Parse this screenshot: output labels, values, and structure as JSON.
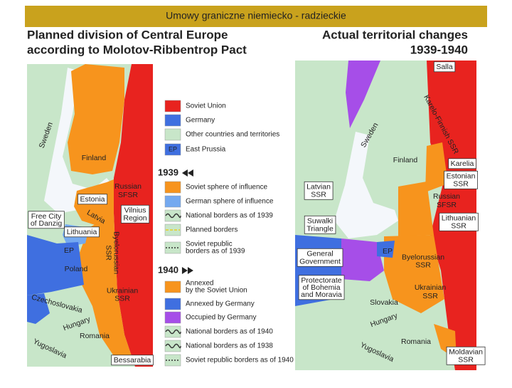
{
  "header": {
    "title": "Umowy graniczne niemiecko - radzieckie"
  },
  "left": {
    "title": [
      "Planned division of Central Europe",
      "according to Molotov-Ribbentrop Pact"
    ],
    "labels": [
      [
        "Sweden"
      ],
      [
        "Finland"
      ],
      [
        "Estonia"
      ],
      [
        "Latvia"
      ],
      [
        "Lithuania"
      ],
      [
        "Russian",
        "SFSR"
      ],
      [
        "Vilnius",
        "Region"
      ],
      [
        "Free City",
        "of Danzig"
      ],
      [
        "EP"
      ],
      [
        "Poland"
      ],
      [
        "Byelorussian",
        "SSR"
      ],
      [
        "Ukrainian",
        "SSR"
      ],
      [
        "Czechoslovakia"
      ],
      [
        "Hungary"
      ],
      [
        "Romania"
      ],
      [
        "Yugoslavia"
      ],
      [
        "Bessarabia"
      ]
    ]
  },
  "right": {
    "title": [
      "Actual territorial changes",
      "1939-1940"
    ],
    "labels": [
      [
        "Salla"
      ],
      [
        "Karelo-Finnish SSR"
      ],
      [
        "Sweden"
      ],
      [
        "Finland"
      ],
      [
        "Karelia"
      ],
      [
        "Estonian",
        "SSR"
      ],
      [
        "Latvian",
        "SSR"
      ],
      [
        "Russian",
        "SFSR"
      ],
      [
        "Lithuanian",
        "SSR"
      ],
      [
        "Suwalki",
        "Triangle"
      ],
      [
        "General",
        "Government"
      ],
      [
        "EP"
      ],
      [
        "Byelorussian",
        "SSR"
      ],
      [
        "Protectorate",
        "of Bohemia",
        "and Moravia"
      ],
      [
        "Slovakia"
      ],
      [
        "Hungary"
      ],
      [
        "Ukrainian",
        "SSR"
      ],
      [
        "Romania"
      ],
      [
        "Yugoslavia"
      ],
      [
        "Moldavian",
        "SSR"
      ]
    ]
  },
  "legend": {
    "items": [
      {
        "label": [
          "Soviet Union"
        ],
        "color": "#e8231f"
      },
      {
        "label": [
          "Germany"
        ],
        "color": "#3f6fe0"
      },
      {
        "label": [
          "Other countries and territories"
        ],
        "color": "#c8e6c9"
      },
      {
        "label": [
          "East Prussia"
        ],
        "color": "#3f6fe0",
        "badge": "EP"
      },
      {
        "label": [
          "Soviet sphere of influence"
        ],
        "color": "#f7941d"
      },
      {
        "label": [
          "German sphere of influence"
        ],
        "color": "#74a9f0"
      },
      {
        "label": [
          "National borders as of 1939"
        ],
        "color": "#c8e6c9"
      },
      {
        "label": [
          "Planned borders"
        ],
        "color": "#c8e6c9"
      },
      {
        "label": [
          "Soviet republic",
          "borders as of 1939"
        ],
        "color": "#c8e6c9"
      },
      {
        "label": [
          "Annexed",
          "by the Soviet Union"
        ],
        "color": "#f7941d"
      },
      {
        "label": [
          "Annexed by Germany"
        ],
        "color": "#3f6fe0"
      },
      {
        "label": [
          "Occupied by Germany"
        ],
        "color": "#a64ee8"
      },
      {
        "label": [
          "National borders as of 1940"
        ],
        "color": "#c8e6c9"
      },
      {
        "label": [
          "National borders as of 1938"
        ],
        "color": "#c8e6c9"
      },
      {
        "label": [
          "Soviet republic borders as of 1940"
        ],
        "color": "#c8e6c9"
      }
    ],
    "sections": [
      "1939",
      "1940"
    ]
  }
}
